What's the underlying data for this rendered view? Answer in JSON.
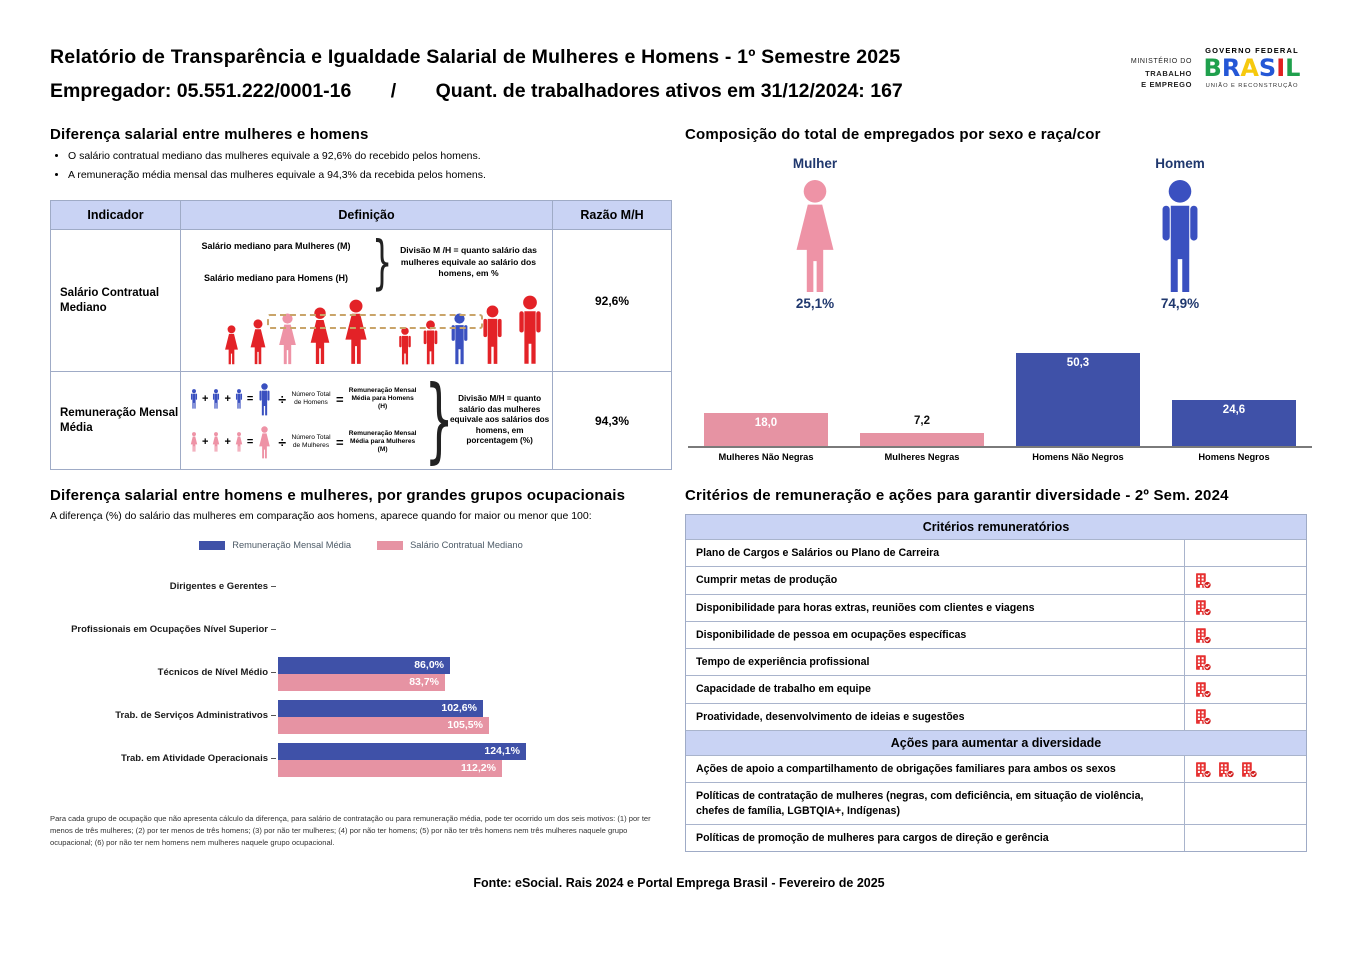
{
  "header": {
    "title_line1": "Relatório de Transparência e Igualdade Salarial de Mulheres e Homens - 1º Semestre 2025",
    "employer": "Empregador: 05.551.222/0001-16",
    "separator": "/",
    "workers": "Quant. de trabalhadores ativos em 31/12/2024: 167",
    "ministry": [
      "MINISTÉRIO DO",
      "TRABALHO",
      "E EMPREGO"
    ],
    "gov": {
      "top": "GOVERNO FEDERAL",
      "name": "BRASIL",
      "bottom": "UNIÃO E RECONSTRUÇÃO"
    }
  },
  "symbols": {
    "brace": "}",
    "plus": "+",
    "equals": "=",
    "divide": "÷"
  },
  "salary_gap": {
    "title": "Diferença salarial entre mulheres e homens",
    "bullets": [
      "O salário contratual mediano das mulheres equivale a 92,6% do recebido pelos homens.",
      "A remuneração média mensal das mulheres equivale a 94,3% da recebida pelos homens."
    ],
    "table": {
      "headers": [
        "Indicador",
        "Definição",
        "Razão M/H"
      ],
      "rows": [
        {
          "indicator": "Salário Contratual Mediano",
          "ratio": "92,6%",
          "def_line1": "Salário mediano para Mulheres (M)",
          "def_line2": "Salário mediano para Homens (H)",
          "def_note": "Divisão M /H = quanto salário das mulheres equivale ao salário dos homens, em %"
        },
        {
          "indicator": "Remuneração Mensal Média",
          "ratio": "94,3%",
          "men_num_label": "Número Total de Homens",
          "men_result_label": "Remuneração Mensal Média para Homens (H)",
          "women_num_label": "Número Total de Mulheres",
          "women_result_label": "Remuneração Mensal Média para Mulheres (M)",
          "def_note": "Divisão M/H = quanto salário das mulheres equivale aos salários dos homens, em porcentagem (%)"
        }
      ]
    }
  },
  "composition": {
    "title": "Composição do total de empregados por sexo e raça/cor",
    "female_label": "Mulher",
    "female_value": "25,1%",
    "male_label": "Homem",
    "male_value": "74,9%"
  },
  "occupational": {
    "title": "Diferença salarial entre homens e mulheres, por grandes grupos ocupacionais",
    "subtitle": "A diferença (%) do salário das mulheres em comparação aos homens, aparece quando for maior ou menor que 100:",
    "footnote": "Para cada grupo de ocupação que não apresenta cálculo da diferença, para salário de contratação ou para remuneração média, pode ter ocorrido um dos seis motivos: (1) por ter menos de três mulheres; (2) por ter menos de três homens; (3) por não ter mulheres; (4) por não ter homens; (5) por não ter três homens nem três mulheres naquele grupo ocupacional; (6) por não ter nem homens nem mulheres naquele grupo ocupacional."
  },
  "criteria": {
    "title": "Critérios de remuneração e ações para garantir diversidade - 2º Sem. 2024",
    "sections": [
      {
        "header": "Critérios remuneratórios",
        "rows": [
          {
            "label": "Plano de Cargos e Salários ou Plano de Carreira",
            "icons": 0
          },
          {
            "label": "Cumprir metas de produção",
            "icons": 1
          },
          {
            "label": "Disponibilidade para horas extras, reuniões com clientes e viagens",
            "icons": 1
          },
          {
            "label": "Disponibilidade de pessoa em ocupações específicas",
            "icons": 1
          },
          {
            "label": "Tempo de experiência profissional",
            "icons": 1
          },
          {
            "label": "Capacidade de trabalho em equipe",
            "icons": 1
          },
          {
            "label": "Proatividade, desenvolvimento de ideias e sugestões",
            "icons": 1
          }
        ]
      },
      {
        "header": "Ações para aumentar a diversidade",
        "rows": [
          {
            "label": "Ações de apoio a compartilhamento de obrigações familiares para ambos os sexos",
            "icons": 3
          },
          {
            "label": "Políticas de contratação de mulheres (negras, com deficiência, em situação de violência, chefes de família, LGBTQIA+, Indígenas)",
            "icons": 0
          },
          {
            "label": "Políticas de promoção de mulheres para cargos de direção e gerência",
            "icons": 0
          }
        ]
      }
    ]
  },
  "footer": {
    "source": "Fonte: eSocial. Rais 2024 e Portal Emprega Brasil - Fevereiro de 2025"
  },
  "colors": {
    "pink": "#ee93a6",
    "blue": "#3a50c0",
    "red": "#e32227",
    "bar_pink": "#e693a3",
    "bar_blue": "#3f51a8",
    "navy_text": "#20386e",
    "dashed_box": "#c9a469",
    "icon_red": "#e63030"
  },
  "chart_data": [
    {
      "type": "bar",
      "title": "Composição do total de empregados por sexo e raça/cor",
      "categories": [
        "Mulheres Não Negras",
        "Mulheres Negras",
        "Homens Não Negros",
        "Homens Negros"
      ],
      "values": [
        18.0,
        7.2,
        50.3,
        24.6
      ],
      "value_labels": [
        "18,0",
        "7,2",
        "50,3",
        "24,6"
      ],
      "colors": [
        "#e693a3",
        "#e693a3",
        "#3f51a8",
        "#3f51a8"
      ],
      "xlabel": "",
      "ylabel": "",
      "ylim": [
        0,
        55
      ],
      "grid": false,
      "legend_position": "none"
    },
    {
      "type": "bar",
      "orientation": "horizontal",
      "title": "Diferença salarial entre homens e mulheres, por grandes grupos ocupacionais",
      "categories": [
        "Dirigentes e Gerentes",
        "Profissionais em Ocupações Nível Superior",
        "Técnicos de Nível Médio",
        "Trab. de Serviços Administrativos",
        "Trab. em Atividade Operacionais"
      ],
      "series": [
        {
          "name": "Remuneração Mensal Média",
          "color": "#3f51a8",
          "values": [
            null,
            null,
            86.0,
            102.6,
            124.1
          ],
          "labels": [
            "",
            "",
            "86,0%",
            "102,6%",
            "124,1%"
          ]
        },
        {
          "name": "Salário Contratual Mediano",
          "color": "#e693a3",
          "values": [
            null,
            null,
            83.7,
            105.5,
            112.2
          ],
          "labels": [
            "",
            "",
            "83,7%",
            "105,5%",
            "112,2%"
          ]
        }
      ],
      "xlabel": "",
      "ylabel": "",
      "xlim": [
        0,
        130
      ],
      "grid": false,
      "legend_position": "top"
    }
  ]
}
